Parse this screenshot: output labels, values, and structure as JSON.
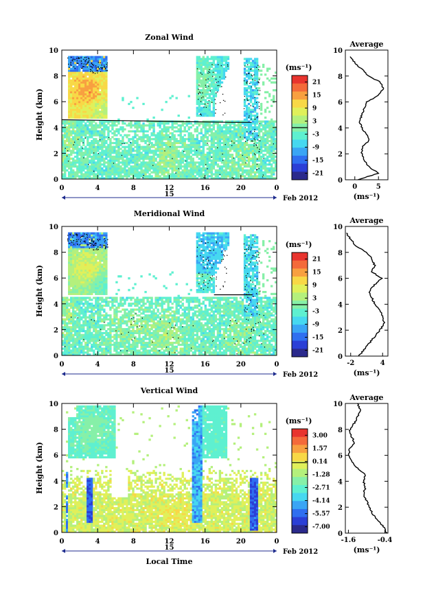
{
  "colorscale": [
    "#2b2a8c",
    "#2b3fd6",
    "#2f6ff0",
    "#3aa5f5",
    "#46d8f0",
    "#5ef0d0",
    "#86f0a8",
    "#b4f07c",
    "#e0f05a",
    "#f8d846",
    "#f8a040",
    "#f46a3a",
    "#e8342e"
  ],
  "chart_data": [
    {
      "type": "heatmap",
      "title": "Zonal Wind",
      "ylabel": "Height (km)",
      "xlabel": "",
      "x_range": [
        0,
        24
      ],
      "y_range": [
        0,
        10
      ],
      "x_ticks": [
        "0",
        "4",
        "8",
        "12",
        "16",
        "20",
        "0"
      ],
      "y_ticks": [
        "0",
        "2",
        "4",
        "6",
        "8",
        "10"
      ],
      "day_label": "15",
      "date_label": "Feb 2012",
      "colorbar": {
        "unit": "(ms⁻¹)",
        "ticks": [
          "21",
          "15",
          "9",
          "3",
          "-3",
          "-9",
          "-15",
          "-21"
        ],
        "range": [
          -24,
          24
        ]
      },
      "boundary_height_km": 4.6,
      "profile": {
        "title": "Average",
        "xlabel": "(ms⁻¹)",
        "x_ticks": [
          "0",
          "5"
        ],
        "x_range": [
          -2,
          7
        ],
        "height_km": [
          0,
          0.5,
          1,
          1.5,
          2,
          2.5,
          3,
          3.5,
          4,
          4.5,
          5,
          5.5,
          6,
          6.5,
          7,
          7.5,
          8,
          8.5,
          9,
          9.5
        ],
        "value": [
          0.5,
          5,
          3,
          2,
          1.5,
          1.5,
          3,
          2.5,
          1.5,
          1,
          1.5,
          2,
          2.5,
          5,
          6,
          5.5,
          3,
          1.5,
          0,
          -1
        ]
      }
    },
    {
      "type": "heatmap",
      "title": "Meridional Wind",
      "ylabel": "Height (km)",
      "xlabel": "",
      "x_range": [
        0,
        24
      ],
      "y_range": [
        0,
        10
      ],
      "x_ticks": [
        "0",
        "4",
        "8",
        "12",
        "16",
        "20",
        "0"
      ],
      "y_ticks": [
        "0",
        "2",
        "4",
        "6",
        "8",
        "10"
      ],
      "day_label": "15",
      "date_label": "Feb 2012",
      "colorbar": {
        "unit": "(ms⁻¹)",
        "ticks": [
          "21",
          "15",
          "9",
          "3",
          "-3",
          "-9",
          "-15",
          "-21"
        ],
        "range": [
          -24,
          24
        ]
      },
      "boundary_height_km": 4.7,
      "profile": {
        "title": "Average",
        "xlabel": "(ms⁻¹)",
        "x_ticks": [
          "-2",
          "4"
        ],
        "x_range": [
          -3,
          5
        ],
        "height_km": [
          0,
          0.5,
          1,
          1.5,
          2,
          2.5,
          3,
          3.5,
          4,
          4.5,
          5,
          5.5,
          6,
          6.5,
          7,
          7.5,
          8,
          8.5,
          9,
          9.5
        ],
        "value": [
          -0.5,
          0.5,
          1.5,
          2.5,
          3.5,
          4.3,
          4,
          3.6,
          2.5,
          2,
          1.5,
          2.5,
          3.8,
          2,
          2.5,
          2,
          1,
          -1,
          -2,
          -2.8
        ]
      }
    },
    {
      "type": "heatmap",
      "title": "Vertical Wind",
      "ylabel": "Height (km)",
      "xlabel": "Local Time",
      "x_range": [
        0,
        24
      ],
      "y_range": [
        0,
        10
      ],
      "x_ticks": [
        "0",
        "4",
        "8",
        "12",
        "16",
        "20",
        "0"
      ],
      "y_ticks": [
        "0",
        "2",
        "4",
        "6",
        "8",
        "10"
      ],
      "day_label": "15",
      "date_label": "Feb 2012",
      "colorbar": {
        "unit": "(ms⁻¹)",
        "ticks": [
          "3.00",
          "1.57",
          "0.14",
          "-1.28",
          "-2.71",
          "-4.14",
          "-5.57",
          "-7.00"
        ],
        "range": [
          -7.7,
          3.7
        ]
      },
      "boundary_height_km": 4.9,
      "profile": {
        "title": "Average",
        "xlabel": "(ms⁻¹)",
        "x_ticks": [
          "-1.6",
          "-0.4"
        ],
        "x_range": [
          -1.7,
          -0.3
        ],
        "height_km": [
          0,
          0.5,
          1,
          1.5,
          2,
          2.5,
          3,
          3.5,
          4,
          4.5,
          5,
          5.5,
          6,
          6.5,
          7,
          7.5,
          8,
          8.5,
          9,
          9.5,
          10
        ],
        "value": [
          -0.35,
          -0.45,
          -0.65,
          -0.8,
          -0.9,
          -1.0,
          -1.1,
          -1.05,
          -1.1,
          -1.05,
          -1.3,
          -1.5,
          -1.6,
          -1.55,
          -1.4,
          -1.5,
          -1.55,
          -1.4,
          -1.3,
          -1.2,
          -1.3
        ]
      }
    }
  ]
}
